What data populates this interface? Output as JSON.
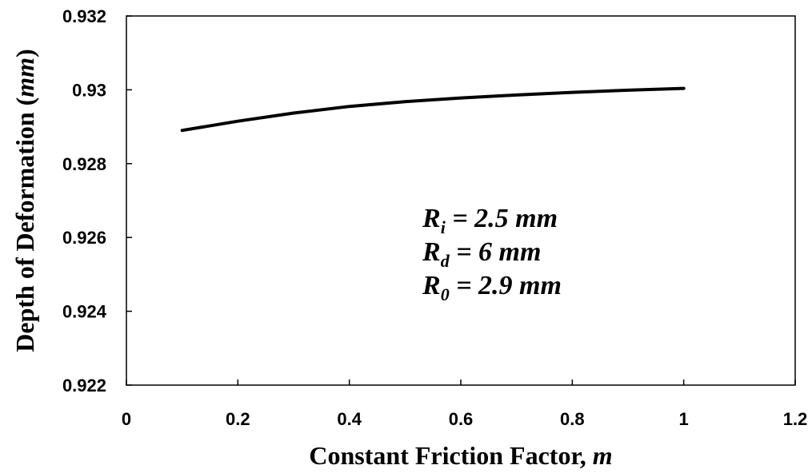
{
  "chart_data": {
    "type": "line",
    "title": "",
    "xlabel": "Constant Friction Factor, ",
    "xlabel_var": "m",
    "ylabel": "Depth of Deformation (",
    "ylabel_unit": "mm",
    "ylabel_close": ")",
    "xlim": [
      0,
      1.2
    ],
    "ylim": [
      0.922,
      0.932
    ],
    "xticks": [
      0,
      0.2,
      0.4,
      0.6,
      0.8,
      1,
      1.2
    ],
    "xtick_labels": [
      "0",
      "0.2",
      "0.4",
      "0.6",
      "0.8",
      "1",
      "1.2"
    ],
    "yticks": [
      0.922,
      0.924,
      0.926,
      0.928,
      0.93,
      0.932
    ],
    "ytick_labels": [
      "0.922",
      "0.924",
      "0.926",
      "0.928",
      "0.93",
      "0.932"
    ],
    "grid": false,
    "legend": false,
    "series": [
      {
        "x": [
          0.1,
          0.2,
          0.3,
          0.4,
          0.5,
          0.6,
          0.7,
          0.8,
          0.9,
          1.0
        ],
        "y": [
          0.9289,
          0.92915,
          0.92937,
          0.92955,
          0.92968,
          0.92978,
          0.92986,
          0.92993,
          0.92999,
          0.93004
        ],
        "color": "#000000"
      }
    ],
    "annotations": [
      {
        "var": "R",
        "sub": "i",
        "text": " = 2.5 mm"
      },
      {
        "var": "R",
        "sub": "d",
        "text": " = 6 mm"
      },
      {
        "var": "R",
        "sub": "0",
        "text": " = 2.9 mm"
      }
    ]
  }
}
